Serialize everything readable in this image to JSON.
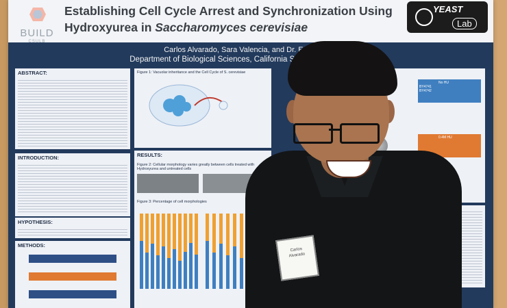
{
  "poster": {
    "title_line1": "Establishing Cell Cycle Arrest and Synchronization Using",
    "title_line2_prefix": "Hydroxyurea in ",
    "title_line2_species": "Saccharomyces cerevisiae",
    "authors": "Carlos Alvarado, Sara Valencia, and Dr. Editte Ghas",
    "affiliation": "Department of Biological Sciences, California State University Long E",
    "logo_left": "BUILD",
    "logo_left_sub": "CSULB",
    "logo_right_top": "YEAST",
    "logo_right_bottom": "Lab",
    "sections": {
      "abstract": "ABSTRACT:",
      "introduction": "INTRODUCTION:",
      "hypothesis": "HYPOTHESIS:",
      "methods": "METHODS:",
      "results": "RESULTS:"
    },
    "figures": {
      "fig1": "Figure 1: Vacuolar inheritance and the Cell Cycle of S. cerevisiae",
      "fig2": "Figure 2: Cellular morphology varies greatly between cells treated with Hydroxyurea and untreated cells",
      "fig3": "Figure 3: Percentage of cell morphologies"
    },
    "table": {
      "col1": "No HU",
      "col2": "0.4M HU",
      "row1": "BY4741",
      "row2": "BY4742"
    }
  },
  "badge": {
    "line1": "Carlos",
    "line2": "Alvarado"
  },
  "colors": {
    "poster_band": "#223a5c",
    "bar_orange": "#f0a030",
    "bar_blue": "#3f7fc0"
  }
}
